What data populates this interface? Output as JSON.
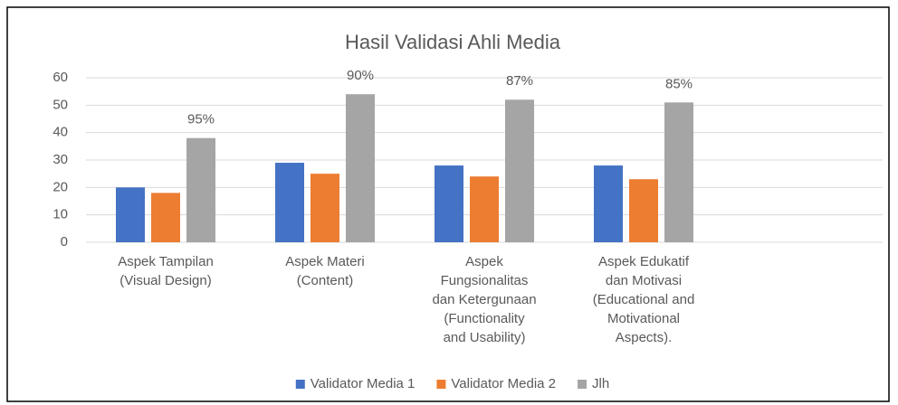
{
  "chart_data": {
    "type": "bar",
    "title": "Hasil Validasi Ahli Media",
    "categories": [
      "Aspek Tampilan\n(Visual Design)",
      "Aspek Materi\n(Content)",
      "Aspek\nFungsionalitas\ndan Ketergunaan\n(Functionality\nand Usability)",
      "Aspek Edukatif\ndan Motivasi\n(Educational and\nMotivational\nAspects).",
      null
    ],
    "series": [
      {
        "name": "Validator Media 1",
        "color": "#4472c4",
        "values": [
          20,
          29,
          28,
          28,
          null
        ]
      },
      {
        "name": "Validator Media 2",
        "color": "#ed7d31",
        "values": [
          18,
          25,
          24,
          23,
          null
        ]
      },
      {
        "name": "Jlh",
        "color": "#a5a5a5",
        "values": [
          38,
          54,
          52,
          51,
          null
        ]
      }
    ],
    "annotations": [
      "95%",
      "90%",
      "87%",
      "85%"
    ],
    "ylim": [
      0,
      60
    ],
    "yticks": [
      0,
      10,
      20,
      30,
      40,
      50,
      60
    ],
    "grid": true,
    "legend": "bottom"
  }
}
